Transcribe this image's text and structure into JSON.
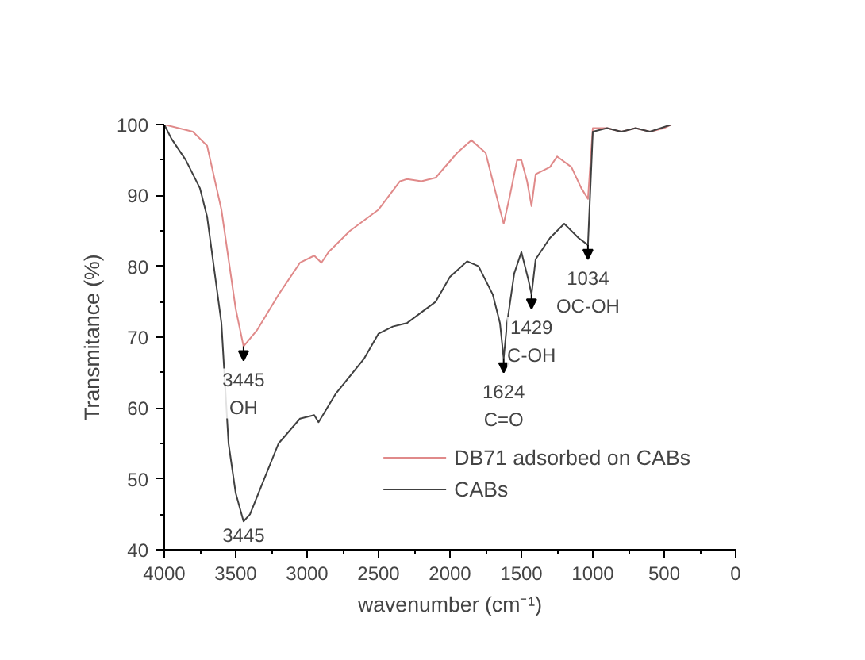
{
  "chart_data": {
    "type": "line",
    "xlabel": "wavenumber (cm⁻¹)",
    "ylabel": "Transmitance (%)",
    "xlim": [
      4000,
      0
    ],
    "ylim": [
      40,
      100
    ],
    "xticks": [
      4000,
      3500,
      3000,
      2500,
      2000,
      1500,
      1000,
      500,
      0
    ],
    "yticks": [
      40,
      50,
      60,
      70,
      80,
      90,
      100
    ],
    "grid": false,
    "legend": "bottom right",
    "line_style": "solid",
    "series": [
      {
        "name": "DB71 adsorbed on CABs",
        "color": "#e08a8a",
        "x": [
          4000,
          3800,
          3700,
          3600,
          3500,
          3445,
          3350,
          3200,
          3050,
          2950,
          2900,
          2850,
          2700,
          2500,
          2350,
          2300,
          2200,
          2100,
          1950,
          1850,
          1750,
          1700,
          1650,
          1624,
          1580,
          1530,
          1500,
          1460,
          1429,
          1400,
          1300,
          1250,
          1150,
          1080,
          1034,
          1000,
          900,
          800,
          700,
          600,
          500,
          450
        ],
        "values": [
          100,
          99,
          97,
          88,
          74,
          68.7,
          71,
          76,
          80.5,
          81.5,
          80.5,
          82,
          85,
          88,
          92,
          92.3,
          92,
          92.5,
          96,
          97.8,
          96,
          92,
          88,
          86,
          90,
          95,
          95,
          92,
          88.5,
          93,
          94,
          95.5,
          94,
          91,
          89.5,
          99.5,
          99.5,
          99,
          99.5,
          99,
          99.5,
          100
        ]
      },
      {
        "name": "CABs",
        "color": "#404040",
        "x": [
          4000,
          3950,
          3850,
          3750,
          3700,
          3600,
          3550,
          3500,
          3445,
          3400,
          3300,
          3200,
          3050,
          2950,
          2920,
          2800,
          2600,
          2500,
          2400,
          2300,
          2100,
          2000,
          1880,
          1800,
          1700,
          1650,
          1624,
          1600,
          1550,
          1500,
          1450,
          1429,
          1400,
          1300,
          1200,
          1100,
          1034,
          1000,
          900,
          800,
          700,
          600,
          450
        ],
        "values": [
          100,
          98,
          95,
          91,
          87,
          72,
          55,
          48,
          44,
          45,
          50,
          55,
          58.5,
          59,
          58,
          62,
          67,
          70.5,
          71.5,
          72,
          75,
          78.5,
          80.7,
          80,
          76,
          72,
          67,
          72,
          79,
          82,
          78,
          76,
          81,
          84,
          86,
          84,
          83,
          99,
          99.5,
          99,
          99.5,
          99,
          100
        ]
      }
    ],
    "annotations": [
      {
        "text": "3445\nOH",
        "x": 3445,
        "y": 68.7
      },
      {
        "text": "3445",
        "x": 3445,
        "y": 44
      },
      {
        "text": "1624\nC=O",
        "x": 1624,
        "y": 67
      },
      {
        "text": "1429\nC-OH",
        "x": 1429,
        "y": 76
      },
      {
        "text": "1034\nOC-OH",
        "x": 1034,
        "y": 83
      }
    ]
  }
}
